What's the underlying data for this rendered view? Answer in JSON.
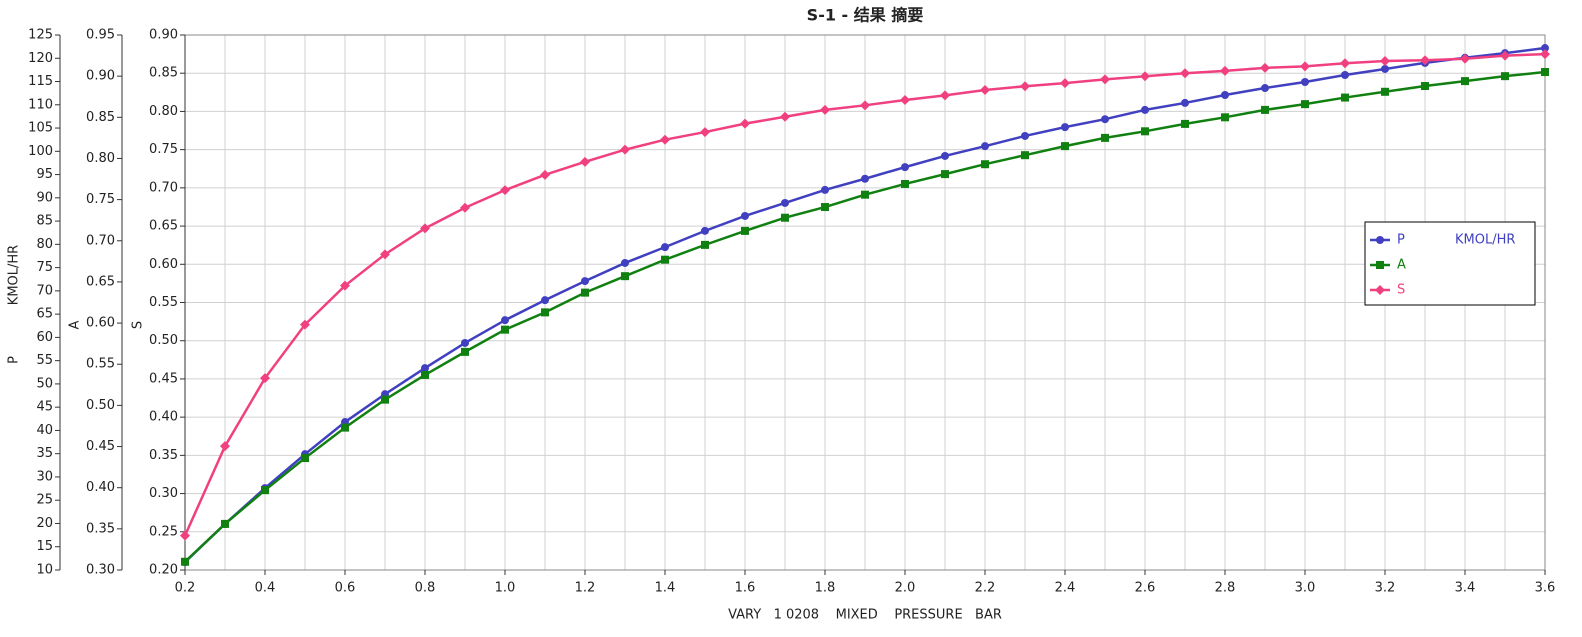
{
  "chart_data": {
    "type": "line",
    "title": "S-1 - 结果 摘要",
    "xlabel": "VARY   1 0208    MIXED    PRESSURE   BAR",
    "x": [
      0.2,
      0.3,
      0.4,
      0.5,
      0.6,
      0.7,
      0.8,
      0.9,
      1.0,
      1.1,
      1.2,
      1.3,
      1.4,
      1.5,
      1.6,
      1.7,
      1.8,
      1.9,
      2.0,
      2.1,
      2.2,
      2.3,
      2.4,
      2.5,
      2.6,
      2.7,
      2.8,
      2.9,
      3.0,
      3.1,
      3.2,
      3.3,
      3.4,
      3.5,
      3.6
    ],
    "xlim": [
      0.2,
      3.6
    ],
    "xticks": [
      0.2,
      0.4,
      0.6,
      0.8,
      {
        "value": 1,
        "label": "1.0"
      },
      1.2,
      1.4,
      1.6,
      1.8,
      {
        "value": 2,
        "label": "2.0"
      },
      2.2,
      2.4,
      2.6,
      2.8,
      {
        "value": 3,
        "label": "3.0"
      },
      3.2,
      3.4,
      3.6
    ],
    "xgrid": [
      0.3,
      0.5,
      0.7,
      0.9,
      1.1,
      1.3,
      1.5,
      1.7,
      1.9,
      2.1,
      2.3,
      2.5,
      2.7,
      2.9,
      3.1,
      3.3,
      3.5
    ],
    "grid": true,
    "legend": "right",
    "ylim": [
      10,
      125
    ],
    "yticks": [
      10,
      15,
      20,
      25,
      30,
      35,
      40,
      45,
      50,
      55,
      60,
      65,
      70,
      75,
      80,
      85,
      90,
      95,
      100,
      105,
      110,
      115,
      120,
      125
    ],
    "y2lim": [
      0.3,
      0.95
    ],
    "y2ticks": [
      {
        "value": 0.3,
        "label": "0.30"
      },
      0.35,
      {
        "value": 0.4,
        "label": "0.40"
      },
      0.45,
      {
        "value": 0.5,
        "label": "0.50"
      },
      0.55,
      {
        "value": 0.6,
        "label": "0.60"
      },
      0.65,
      {
        "value": 0.7,
        "label": "0.70"
      },
      0.75,
      {
        "value": 0.8,
        "label": "0.80"
      },
      0.85,
      {
        "value": 0.9,
        "label": "0.90"
      },
      0.95
    ],
    "y3lim": [
      0.2,
      0.9
    ],
    "y3ticks": [
      {
        "value": 0.2,
        "label": "0.20"
      },
      0.25,
      {
        "value": 0.3,
        "label": "0.30"
      },
      0.35,
      {
        "value": 0.4,
        "label": "0.40"
      },
      0.45,
      {
        "value": 0.5,
        "label": "0.50"
      },
      0.55,
      {
        "value": 0.6,
        "label": "0.60"
      },
      0.65,
      {
        "value": 0.7,
        "label": "0.70"
      },
      0.75,
      {
        "value": 0.8,
        "label": "0.80"
      },
      0.85,
      {
        "value": 0.9,
        "label": "0.90"
      }
    ],
    "series": [
      {
        "name": "P",
        "unit": "KMOL/HR",
        "color": "#4040c0",
        "marker": "circle",
        "axis": "y",
        "values": [
          11.7,
          19.9,
          27.6,
          34.9,
          41.8,
          47.8,
          53.4,
          58.8,
          63.7,
          68.0,
          72.1,
          76.0,
          79.4,
          82.9,
          86.1,
          88.9,
          91.7,
          94.1,
          96.6,
          99.0,
          101.1,
          103.3,
          105.2,
          106.9,
          108.9,
          110.4,
          112.1,
          113.6,
          114.9,
          116.4,
          117.7,
          119.0,
          120.1,
          121.1,
          122.2
        ]
      },
      {
        "name": "A",
        "color": "#108010",
        "marker": "square",
        "axis": "y2",
        "values": [
          0.31,
          0.356,
          0.397,
          0.436,
          0.473,
          0.507,
          0.537,
          0.565,
          0.592,
          0.613,
          0.637,
          0.657,
          0.677,
          0.695,
          0.712,
          0.728,
          0.741,
          0.756,
          0.769,
          0.781,
          0.793,
          0.804,
          0.815,
          0.825,
          0.833,
          0.842,
          0.85,
          0.859,
          0.866,
          0.874,
          0.881,
          0.888,
          0.894,
          0.9,
          0.905
        ]
      },
      {
        "name": "S",
        "color": "#f04080",
        "marker": "diamond",
        "axis": "y3",
        "values": [
          0.245,
          0.362,
          0.451,
          0.521,
          0.572,
          0.613,
          0.647,
          0.674,
          0.697,
          0.717,
          0.734,
          0.75,
          0.763,
          0.773,
          0.784,
          0.793,
          0.802,
          0.808,
          0.815,
          0.821,
          0.828,
          0.833,
          0.837,
          0.842,
          0.846,
          0.85,
          0.853,
          0.857,
          0.859,
          0.863,
          0.866,
          0.867,
          0.869,
          0.873,
          0.875
        ]
      }
    ]
  }
}
